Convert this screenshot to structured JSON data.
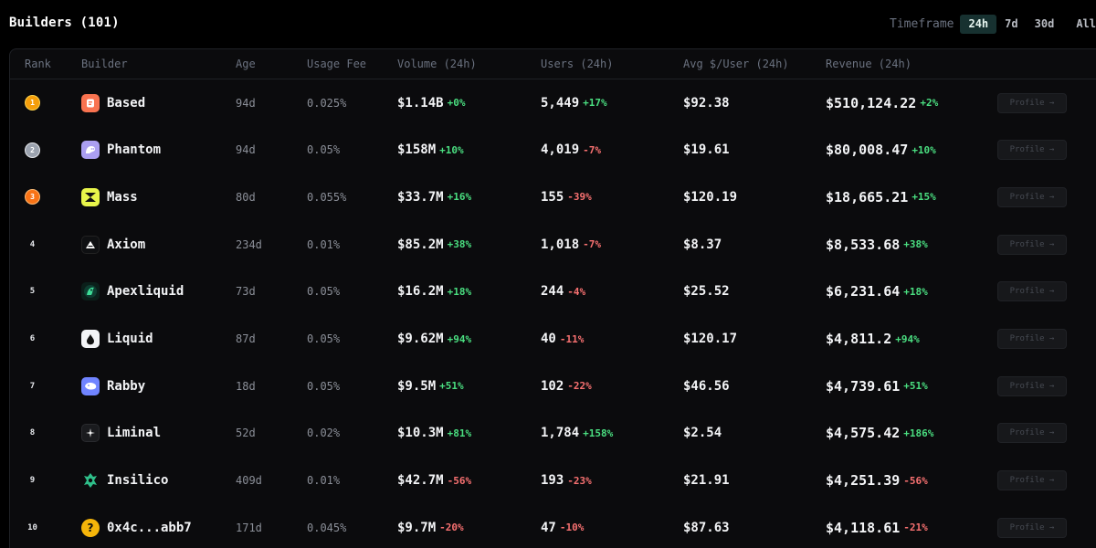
{
  "header": {
    "title": "Builders (101)",
    "timeframe_label": "Timeframe",
    "timeframes": [
      "24h",
      "7d",
      "30d",
      "All"
    ],
    "active_timeframe": "24h"
  },
  "table": {
    "columns": [
      "Rank",
      "Builder",
      "Age",
      "Usage Fee",
      "Volume (24h)",
      "Users (24h)",
      "Avg $/User (24h)",
      "Revenue (24h)"
    ],
    "profile_label": "Profile →",
    "rows": [
      {
        "rank": "1",
        "name": "Based",
        "icon": "based-logo-icon",
        "age": "94d",
        "fee": "0.025%",
        "volume": "$1.14B",
        "volume_chg": "+0%",
        "users": "5,449",
        "users_chg": "+17%",
        "avg": "$92.38",
        "revenue": "$510,124.22",
        "revenue_chg": "+2%"
      },
      {
        "rank": "2",
        "name": "Phantom",
        "icon": "phantom-logo-icon",
        "age": "94d",
        "fee": "0.05%",
        "volume": "$158M",
        "volume_chg": "+10%",
        "users": "4,019",
        "users_chg": "-7%",
        "avg": "$19.61",
        "revenue": "$80,008.47",
        "revenue_chg": "+10%"
      },
      {
        "rank": "3",
        "name": "Mass",
        "icon": "mass-logo-icon",
        "age": "80d",
        "fee": "0.055%",
        "volume": "$33.7M",
        "volume_chg": "+16%",
        "users": "155",
        "users_chg": "-39%",
        "avg": "$120.19",
        "revenue": "$18,665.21",
        "revenue_chg": "+15%"
      },
      {
        "rank": "4",
        "name": "Axiom",
        "icon": "axiom-logo-icon",
        "age": "234d",
        "fee": "0.01%",
        "volume": "$85.2M",
        "volume_chg": "+38%",
        "users": "1,018",
        "users_chg": "-7%",
        "avg": "$8.37",
        "revenue": "$8,533.68",
        "revenue_chg": "+38%"
      },
      {
        "rank": "5",
        "name": "Apexliquid",
        "icon": "apexliquid-logo-icon",
        "age": "73d",
        "fee": "0.05%",
        "volume": "$16.2M",
        "volume_chg": "+18%",
        "users": "244",
        "users_chg": "-4%",
        "avg": "$25.52",
        "revenue": "$6,231.64",
        "revenue_chg": "+18%"
      },
      {
        "rank": "6",
        "name": "Liquid",
        "icon": "liquid-logo-icon",
        "age": "87d",
        "fee": "0.05%",
        "volume": "$9.62M",
        "volume_chg": "+94%",
        "users": "40",
        "users_chg": "-11%",
        "avg": "$120.17",
        "revenue": "$4,811.2",
        "revenue_chg": "+94%"
      },
      {
        "rank": "7",
        "name": "Rabby",
        "icon": "rabby-logo-icon",
        "age": "18d",
        "fee": "0.05%",
        "volume": "$9.5M",
        "volume_chg": "+51%",
        "users": "102",
        "users_chg": "-22%",
        "avg": "$46.56",
        "revenue": "$4,739.61",
        "revenue_chg": "+51%"
      },
      {
        "rank": "8",
        "name": "Liminal",
        "icon": "liminal-logo-icon",
        "age": "52d",
        "fee": "0.02%",
        "volume": "$10.3M",
        "volume_chg": "+81%",
        "users": "1,784",
        "users_chg": "+158%",
        "avg": "$2.54",
        "revenue": "$4,575.42",
        "revenue_chg": "+186%"
      },
      {
        "rank": "9",
        "name": "Insilico",
        "icon": "insilico-logo-icon",
        "age": "409d",
        "fee": "0.01%",
        "volume": "$42.7M",
        "volume_chg": "-56%",
        "users": "193",
        "users_chg": "-23%",
        "avg": "$21.91",
        "revenue": "$4,251.39",
        "revenue_chg": "-56%"
      },
      {
        "rank": "10",
        "name": "0x4c...abb7",
        "icon": "unknown-builder-icon",
        "age": "171d",
        "fee": "0.045%",
        "volume": "$9.7M",
        "volume_chg": "-20%",
        "users": "47",
        "users_chg": "-10%",
        "avg": "$87.63",
        "revenue": "$4,118.61",
        "revenue_chg": "-21%"
      }
    ]
  },
  "colors": {
    "positive": "#4ade80",
    "negative": "#f87171",
    "active_timeframe_bg": "#173130"
  }
}
